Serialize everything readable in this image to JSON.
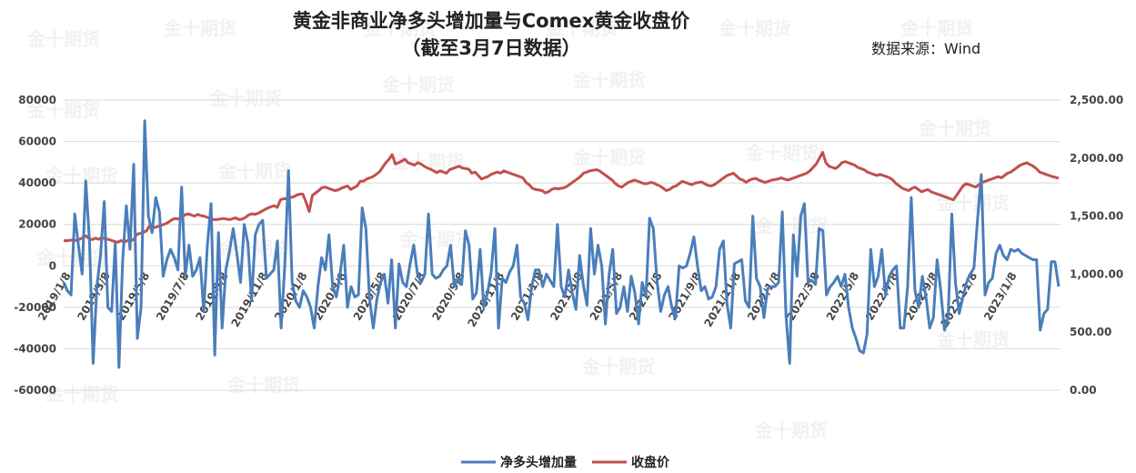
{
  "chart_data": {
    "type": "line",
    "title": "黄金非商业净多头增加量与Comex黄金收盘价",
    "subtitle": "（截至3月7日数据）",
    "source": "数据来源：Wind",
    "x_ticks": [
      "2019/1/8",
      "2019/3/8",
      "2019/5/8",
      "2019/7/8",
      "2019/9/8",
      "2019/11/8",
      "2020/1/8",
      "2020/3/8",
      "2020/5/8",
      "2020/7/8",
      "2020/9/8",
      "2020/11/8",
      "2021/1/8",
      "2021/3/8",
      "2021/5/8",
      "2021/7/8",
      "2021/9/8",
      "2021/11/8",
      "2022/1/8",
      "2022/3/8",
      "2022/5/8",
      "2022/7/8",
      "2022/9/8",
      "2022/11/8",
      "2023/1/8"
    ],
    "y_left": {
      "min": -60000,
      "max": 80000,
      "ticks": [
        80000,
        60000,
        40000,
        20000,
        0,
        -20000,
        -40000,
        -60000
      ],
      "tick_labels": [
        "80000",
        "60000",
        "40000",
        "20000",
        "0",
        "-20000",
        "-40000",
        "-60000"
      ]
    },
    "y_right": {
      "min": 0,
      "max": 2500,
      "ticks": [
        2500,
        2000,
        1500,
        1000,
        500,
        0
      ],
      "tick_labels": [
        "2,500.00",
        "2,000.00",
        "1,500.00",
        "1,000.00",
        "500.00",
        "0.00"
      ]
    },
    "grid": true,
    "legend_position": "bottom",
    "series": [
      {
        "name": "净多头增加量",
        "axis": "left",
        "color": "#4a7ebb",
        "values": [
          -8000,
          -12000,
          -14000,
          25000,
          10000,
          -4000,
          41000,
          12000,
          -47000,
          -10000,
          5000,
          31000,
          -20000,
          -22000,
          11000,
          -49000,
          2000,
          29000,
          8000,
          49000,
          -35000,
          -20000,
          70000,
          24000,
          16000,
          33000,
          26000,
          -5000,
          3000,
          8000,
          4000,
          -2000,
          38000,
          -5000,
          10000,
          -5000,
          -2000,
          4000,
          -22000,
          10000,
          30000,
          -43000,
          16000,
          -30000,
          -2000,
          7000,
          18000,
          6000,
          -8000,
          20000,
          11000,
          -17000,
          15000,
          20000,
          22000,
          -6000,
          -4000,
          -2000,
          12000,
          -30000,
          0,
          46000,
          -8000,
          -17000,
          -20000,
          -12000,
          -15000,
          -20000,
          -30000,
          -10000,
          4000,
          -2000,
          15000,
          -10000,
          -15000,
          -4000,
          10000,
          -20000,
          -10000,
          -15000,
          -14000,
          28000,
          18000,
          -16000,
          -30000,
          -16000,
          -8000,
          -4000,
          -18000,
          3000,
          -30000,
          1000,
          -8000,
          -10000,
          1000,
          10000,
          -4000,
          -8000,
          -4000,
          25000,
          -4000,
          -6000,
          -5000,
          -2000,
          0,
          10000,
          -10000,
          -6000,
          -9000,
          17000,
          10000,
          -16000,
          -13000,
          8000,
          -20000,
          -13000,
          -3000,
          18000,
          -30000,
          -6000,
          -8000,
          -3000,
          0,
          10000,
          -15000,
          -18000,
          -26000,
          -10000,
          -2000,
          -2000,
          -10000,
          -4000,
          -7000,
          -10000,
          20000,
          -10000,
          -15000,
          -2000,
          -13000,
          -21000,
          5000,
          -9000,
          -19000,
          18000,
          -4000,
          10000,
          0,
          -28000,
          -4000,
          8000,
          -23000,
          -20000,
          -10000,
          -22000,
          -5000,
          -13000,
          -28000,
          -8000,
          -15000,
          23000,
          18000,
          -7000,
          -22000,
          -14000,
          -10000,
          -20000,
          -25000,
          0,
          -1000,
          0,
          6000,
          14000,
          0,
          -12000,
          -10000,
          -16000,
          -15000,
          -10000,
          8000,
          12000,
          -18000,
          -30000,
          1000,
          2000,
          3000,
          -17000,
          -20000,
          24000,
          -6000,
          -10000,
          -25000,
          -11000,
          -10000,
          -10000,
          -8000,
          26000,
          -24000,
          -47000,
          15000,
          -5000,
          24000,
          30000,
          -8000,
          -7000,
          -9000,
          18000,
          17000,
          -14000,
          -10000,
          -8000,
          -5000,
          -10000,
          -4000,
          -20000,
          -30000,
          -35000,
          -41000,
          -42000,
          -33000,
          8000,
          -10000,
          -5000,
          8000,
          -14000,
          -5000,
          -2000,
          0,
          -30000,
          -30000,
          -10000,
          33000,
          -12000,
          -20000,
          -5000,
          -15000,
          -30000,
          -25000,
          3000,
          -12000,
          -31000,
          -25000,
          25000,
          -8000,
          -23000,
          -15000,
          -8000,
          -4000,
          -1000,
          23000,
          44000,
          -14000,
          -8000,
          -6000,
          6000,
          10000,
          5000,
          3000,
          8000,
          7000,
          8000,
          6000,
          5000,
          4000,
          3000,
          3000,
          -31000,
          -23000,
          -21000,
          2000,
          2000,
          -10000
        ]
      },
      {
        "name": "收盘价",
        "axis": "right",
        "color": "#c0504d",
        "values": [
          1290,
          1288,
          1292,
          1295,
          1290,
          1300,
          1315,
          1330,
          1305,
          1298,
          1310,
          1300,
          1315,
          1305,
          1300,
          1290,
          1282,
          1275,
          1290,
          1275,
          1290,
          1285,
          1300,
          1345,
          1350,
          1360,
          1375,
          1420,
          1400,
          1405,
          1415,
          1425,
          1435,
          1450,
          1470,
          1480,
          1475,
          1490,
          1510,
          1520,
          1510,
          1500,
          1515,
          1505,
          1500,
          1490,
          1480,
          1470,
          1470,
          1475,
          1480,
          1475,
          1470,
          1478,
          1485,
          1470,
          1475,
          1490,
          1510,
          1520,
          1515,
          1525,
          1540,
          1555,
          1570,
          1580,
          1590,
          1575,
          1640,
          1650,
          1650,
          1660,
          1665,
          1680,
          1690,
          1690,
          1620,
          1540,
          1680,
          1700,
          1720,
          1745,
          1750,
          1740,
          1730,
          1720,
          1725,
          1740,
          1750,
          1760,
          1730,
          1745,
          1760,
          1800,
          1800,
          1820,
          1830,
          1840,
          1860,
          1880,
          1920,
          1960,
          1990,
          2030,
          1950,
          1960,
          1975,
          1990,
          1960,
          1950,
          1940,
          1960,
          1950,
          1930,
          1915,
          1905,
          1890,
          1875,
          1890,
          1880,
          1870,
          1900,
          1910,
          1920,
          1930,
          1915,
          1910,
          1905,
          1870,
          1880,
          1850,
          1820,
          1830,
          1840,
          1860,
          1870,
          1880,
          1870,
          1890,
          1880,
          1870,
          1860,
          1850,
          1840,
          1830,
          1790,
          1770,
          1740,
          1730,
          1725,
          1720,
          1700,
          1710,
          1730,
          1740,
          1735,
          1740,
          1745,
          1760,
          1780,
          1800,
          1820,
          1840,
          1870,
          1880,
          1890,
          1895,
          1900,
          1890,
          1870,
          1850,
          1830,
          1810,
          1780,
          1760,
          1750,
          1770,
          1790,
          1800,
          1810,
          1800,
          1790,
          1780,
          1780,
          1790,
          1785,
          1770,
          1760,
          1740,
          1720,
          1730,
          1750,
          1760,
          1780,
          1800,
          1790,
          1780,
          1770,
          1785,
          1790,
          1795,
          1780,
          1765,
          1760,
          1770,
          1790,
          1810,
          1830,
          1850,
          1860,
          1870,
          1845,
          1820,
          1810,
          1790,
          1810,
          1820,
          1825,
          1810,
          1800,
          1790,
          1800,
          1810,
          1815,
          1820,
          1830,
          1820,
          1810,
          1820,
          1830,
          1840,
          1850,
          1860,
          1870,
          1890,
          1920,
          1950,
          2000,
          2050,
          1960,
          1930,
          1920,
          1910,
          1930,
          1960,
          1970,
          1960,
          1950,
          1940,
          1920,
          1910,
          1900,
          1880,
          1870,
          1860,
          1850,
          1860,
          1850,
          1840,
          1830,
          1810,
          1780,
          1760,
          1740,
          1730,
          1720,
          1740,
          1750,
          1730,
          1710,
          1720,
          1730,
          1710,
          1700,
          1690,
          1680,
          1670,
          1660,
          1650,
          1640,
          1680,
          1720,
          1760,
          1780,
          1770,
          1760,
          1750,
          1770,
          1790,
          1800,
          1810,
          1820,
          1830,
          1840,
          1830,
          1850,
          1870,
          1880,
          1900,
          1920,
          1940,
          1950,
          1960,
          1945,
          1930,
          1910,
          1880,
          1870,
          1860,
          1850,
          1840,
          1835,
          1825
        ]
      }
    ]
  },
  "watermarks": [
    "金十期货",
    "金十期货",
    "金十期货",
    "金十期货",
    "金十期货",
    "金十期货",
    "金十期货",
    "金十期货",
    "金十期货",
    "金十期货",
    "金十期货",
    "金十期货",
    "金十期货",
    "金十期货",
    "金十期货",
    "金十期货",
    "金十期货",
    "金十期货",
    "金十期货",
    "金十期货",
    "金十期货",
    "金十期货",
    "金十期货",
    "金十期货",
    "金十期货",
    "金十期货"
  ],
  "colors": {
    "grid": "#d9d9d9",
    "background": "#ffffff"
  }
}
